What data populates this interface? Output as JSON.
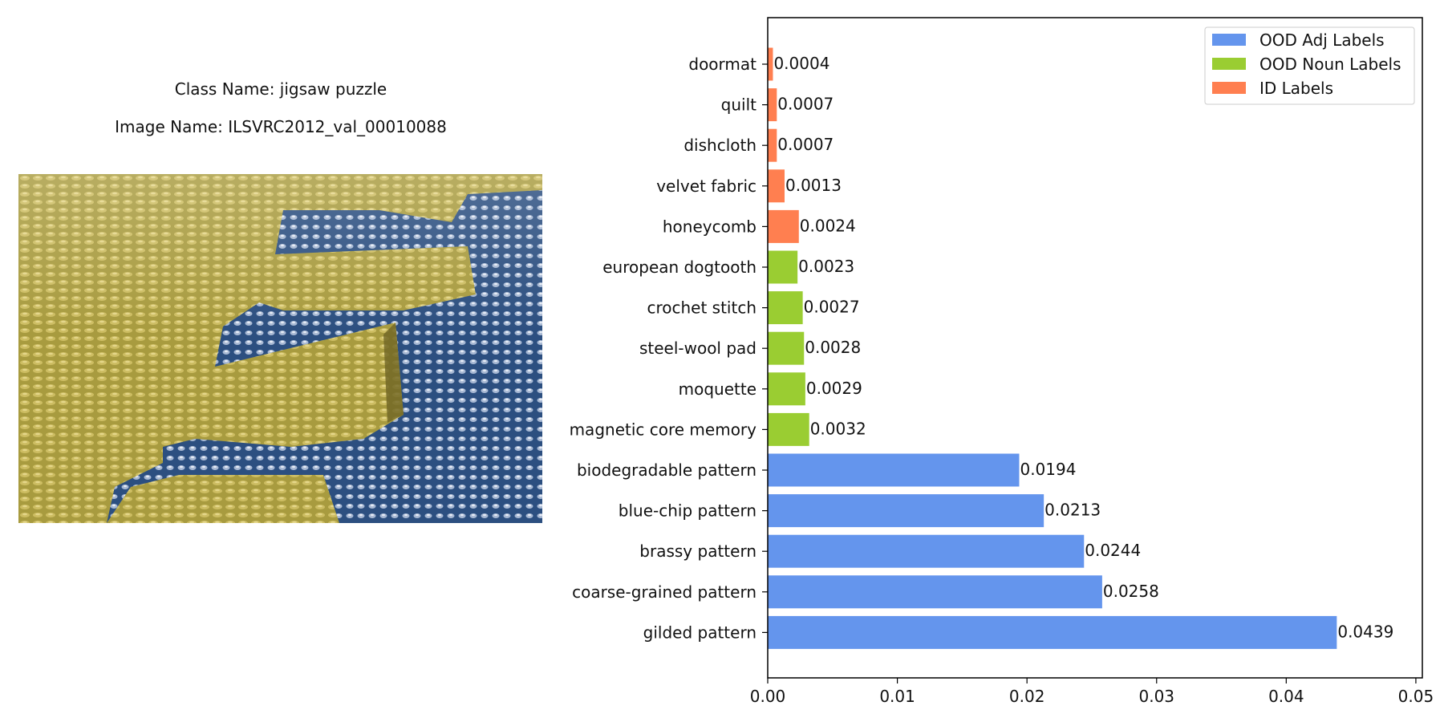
{
  "left": {
    "class_name": "Class Name: jigsaw puzzle",
    "image_name": "Image Name: ILSVRC2012_val_00010088"
  },
  "chart_data": {
    "type": "bar",
    "orientation": "horizontal",
    "categories": [
      "doormat",
      "quilt",
      "dishcloth",
      "velvet fabric",
      "honeycomb",
      "european dogtooth",
      "crochet stitch",
      "steel-wool pad",
      "moquette",
      "magnetic core memory",
      "biodegradable pattern",
      "blue-chip pattern",
      "brassy pattern",
      "coarse-grained pattern",
      "gilded pattern"
    ],
    "values": [
      0.0004,
      0.0007,
      0.0007,
      0.0013,
      0.0024,
      0.0023,
      0.0027,
      0.0028,
      0.0029,
      0.0032,
      0.0194,
      0.0213,
      0.0244,
      0.0258,
      0.0439
    ],
    "value_labels": [
      "0.0004",
      "0.0007",
      "0.0007",
      "0.0013",
      "0.0024",
      "0.0023",
      "0.0027",
      "0.0028",
      "0.0029",
      "0.0032",
      "0.0194",
      "0.0213",
      "0.0244",
      "0.0258",
      "0.0439"
    ],
    "groups": [
      "id",
      "id",
      "id",
      "id",
      "id",
      "noun",
      "noun",
      "noun",
      "noun",
      "noun",
      "adj",
      "adj",
      "adj",
      "adj",
      "adj"
    ],
    "series": [
      {
        "key": "adj",
        "name": "OOD Adj Labels",
        "color": "#6495ED"
      },
      {
        "key": "noun",
        "name": "OOD Noun Labels",
        "color": "#9ACD32"
      },
      {
        "key": "id",
        "name": "ID Labels",
        "color": "#FF7F50"
      }
    ],
    "xlim": [
      0,
      0.0505
    ],
    "xticks": [
      0,
      0.01,
      0.02,
      0.03,
      0.04,
      0.05
    ],
    "xtick_labels": [
      "0.00",
      "0.01",
      "0.02",
      "0.03",
      "0.04",
      "0.05"
    ],
    "legend_position": "top-right",
    "grid": false
  }
}
